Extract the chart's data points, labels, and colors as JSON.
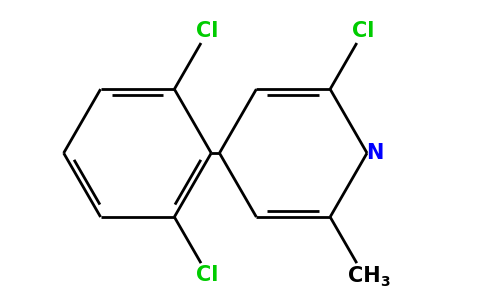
{
  "bg_color": "#ffffff",
  "bond_color": "#000000",
  "cl_color": "#00cc00",
  "n_color": "#0000ff",
  "line_width": 2.0,
  "font_size_atom": 15,
  "font_size_sub": 10,
  "xlim": [
    0.3,
    4.8
  ],
  "ylim": [
    0.2,
    3.1
  ]
}
